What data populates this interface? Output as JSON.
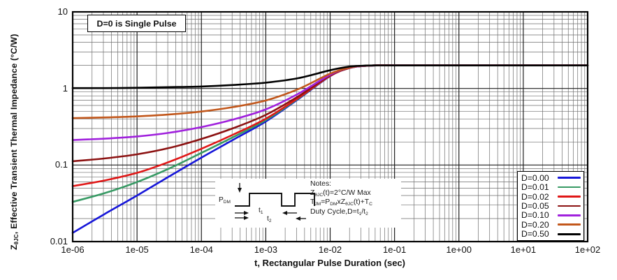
{
  "figure": {
    "annotation": "D=0 is Single Pulse",
    "x_axis": {
      "title": "t, Rectangular Pulse Duration (sec)",
      "tick_labels": [
        "1e-06",
        "1e-05",
        "1e-04",
        "1e-03",
        "1e-02",
        "1e-01",
        "1e+00",
        "1e+01",
        "1e+02"
      ]
    },
    "y_axis": {
      "title_parts": [
        [
          "n",
          "Z"
        ],
        [
          "s",
          "θJC"
        ],
        [
          "n",
          ", Effective Transient Thermal Impedance (°C/W)"
        ]
      ],
      "tick_labels": [
        "10",
        "1",
        "0.1",
        "0.01"
      ]
    },
    "notes": {
      "lines": [
        [
          [
            "n",
            "Notes:"
          ]
        ],
        [
          [
            "n",
            "Z"
          ],
          [
            "s",
            "θJC"
          ],
          [
            "n",
            "(t)=2°C/W Max"
          ]
        ],
        [
          [
            "n",
            "T"
          ],
          [
            "s",
            "JM"
          ],
          [
            "n",
            "=P"
          ],
          [
            "s",
            "DM"
          ],
          [
            "n",
            "xZ"
          ],
          [
            "s",
            "θJC"
          ],
          [
            "n",
            "(t)+T"
          ],
          [
            "s",
            "C"
          ]
        ],
        [
          [
            "n",
            "Duty Cycle,D=t"
          ],
          [
            "s",
            "1"
          ],
          [
            "n",
            "/t"
          ],
          [
            "s",
            "2"
          ]
        ]
      ],
      "pulse_labels": {
        "pdm": [
          [
            "n",
            "P"
          ],
          [
            "s",
            "DM"
          ]
        ],
        "t1": [
          [
            "n",
            "t"
          ],
          [
            "s",
            "1"
          ]
        ],
        "t2": [
          [
            "n",
            "t"
          ],
          [
            "s",
            "2"
          ]
        ]
      }
    }
  },
  "chart_data": {
    "type": "line",
    "title": "",
    "xlabel": "t, Rectangular Pulse Duration (sec)",
    "ylabel": "ZθJC, Effective Transient Thermal Impedance (°C/W)",
    "xscale": "log",
    "yscale": "log",
    "xlim": [
      1e-06,
      100
    ],
    "ylim": [
      0.01,
      10
    ],
    "grid": "major+minor, solid",
    "legend_position": "inside lower right",
    "annotation": "D=0 is Single Pulse",
    "rth_jc_max_c_per_w": 2.0,
    "x": [
      1e-06,
      3.16e-06,
      1e-05,
      3.16e-05,
      0.0001,
      0.000316,
      0.001,
      0.00316,
      0.01,
      0.02,
      0.0316,
      0.05,
      0.1,
      1,
      10,
      100
    ],
    "series": [
      {
        "name": "D=0.00",
        "color": "#1616d9",
        "values": [
          0.013,
          0.023,
          0.04,
          0.071,
          0.125,
          0.215,
          0.37,
          0.72,
          1.45,
          1.85,
          1.96,
          2.0,
          2.0,
          2.0,
          2.0,
          2.0
        ]
      },
      {
        "name": "D=0.01",
        "color": "#379a64",
        "values": [
          0.033,
          0.043,
          0.06,
          0.09,
          0.144,
          0.233,
          0.386,
          0.733,
          1.46,
          1.85,
          1.96,
          2.0,
          2.0,
          2.0,
          2.0,
          2.0
        ]
      },
      {
        "name": "D=0.02",
        "color": "#e01717",
        "values": [
          0.053,
          0.063,
          0.079,
          0.11,
          0.163,
          0.251,
          0.403,
          0.746,
          1.46,
          1.85,
          1.96,
          2.0,
          2.0,
          2.0,
          2.0,
          2.0
        ]
      },
      {
        "name": "D=0.05",
        "color": "#8c1212",
        "values": [
          0.112,
          0.122,
          0.138,
          0.167,
          0.219,
          0.304,
          0.452,
          0.784,
          1.48,
          1.86,
          1.96,
          2.0,
          2.0,
          2.0,
          2.0,
          2.0
        ]
      },
      {
        "name": "D=0.10",
        "color": "#a021dd",
        "values": [
          0.212,
          0.221,
          0.236,
          0.264,
          0.313,
          0.394,
          0.533,
          0.848,
          1.51,
          1.87,
          1.96,
          2.0,
          2.0,
          2.0,
          2.0,
          2.0
        ]
      },
      {
        "name": "D=0.20",
        "color": "#c2571b",
        "values": [
          0.41,
          0.418,
          0.432,
          0.457,
          0.5,
          0.572,
          0.696,
          0.976,
          1.56,
          1.88,
          1.97,
          2.0,
          2.0,
          2.0,
          2.0,
          2.0
        ]
      },
      {
        "name": "D=0.50",
        "color": "#000000",
        "values": [
          1.01,
          1.01,
          1.02,
          1.04,
          1.06,
          1.11,
          1.19,
          1.36,
          1.73,
          1.93,
          1.98,
          2.0,
          2.0,
          2.0,
          2.0,
          2.0
        ]
      }
    ]
  }
}
